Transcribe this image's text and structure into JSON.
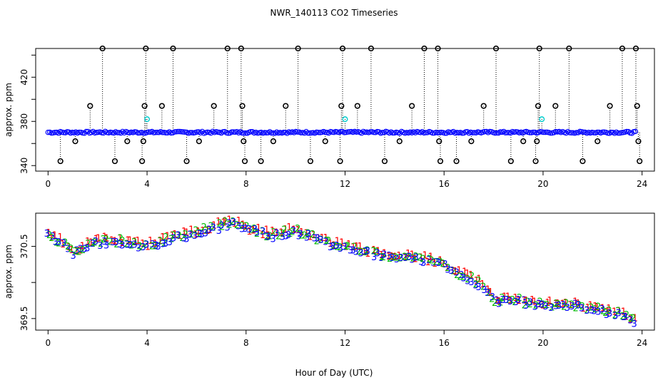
{
  "chart_data": [
    {
      "type": "scatter",
      "title": "NWR_140113  CO2 Timeseries",
      "ylabel": "approx. ppm",
      "xlim": [
        -0.5,
        24.5
      ],
      "ylim": [
        335,
        446
      ],
      "xticks": [
        "0",
        "4",
        "8",
        "12",
        "16",
        "20",
        "24"
      ],
      "yticks": [
        "340",
        "380",
        "420"
      ],
      "yminor_ticks": [
        360,
        400,
        440
      ],
      "baseline_ppm": 370.1,
      "series": [
        {
          "style": "blue open circles, near-continuous",
          "x_range": [
            0,
            23.8
          ],
          "y": 370.1
        },
        {
          "style": "black open circles (outliers)",
          "points": [
            [
              0.5,
              344
            ],
            [
              1.1,
              362
            ],
            [
              1.7,
              394
            ],
            [
              2.2,
              446
            ],
            [
              2.7,
              344
            ],
            [
              3.2,
              362
            ],
            [
              3.8,
              344
            ],
            [
              3.85,
              362
            ],
            [
              3.9,
              394
            ],
            [
              3.95,
              446
            ],
            [
              4.6,
              394
            ],
            [
              5.05,
              446
            ],
            [
              5.6,
              344
            ],
            [
              6.1,
              362
            ],
            [
              6.7,
              394
            ],
            [
              7.25,
              446
            ],
            [
              7.8,
              446
            ],
            [
              7.85,
              394
            ],
            [
              7.9,
              362
            ],
            [
              7.95,
              344
            ],
            [
              8.6,
              344
            ],
            [
              9.1,
              362
            ],
            [
              9.6,
              394
            ],
            [
              10.1,
              446
            ],
            [
              10.6,
              344
            ],
            [
              11.2,
              362
            ],
            [
              11.8,
              344
            ],
            [
              11.85,
              394
            ],
            [
              11.9,
              446
            ],
            [
              12.5,
              394
            ],
            [
              13.05,
              446
            ],
            [
              13.6,
              344
            ],
            [
              14.2,
              362
            ],
            [
              14.7,
              394
            ],
            [
              15.2,
              446
            ],
            [
              15.75,
              446
            ],
            [
              15.8,
              362
            ],
            [
              15.85,
              344
            ],
            [
              16.5,
              344
            ],
            [
              17.1,
              362
            ],
            [
              17.6,
              394
            ],
            [
              18.1,
              446
            ],
            [
              18.7,
              344
            ],
            [
              19.2,
              362
            ],
            [
              19.7,
              344
            ],
            [
              19.75,
              362
            ],
            [
              19.8,
              394
            ],
            [
              19.85,
              446
            ],
            [
              20.5,
              394
            ],
            [
              21.05,
              446
            ],
            [
              21.6,
              344
            ],
            [
              22.2,
              362
            ],
            [
              22.7,
              394
            ],
            [
              23.2,
              446
            ],
            [
              23.75,
              446
            ],
            [
              23.8,
              394
            ],
            [
              23.85,
              362
            ],
            [
              23.9,
              344
            ]
          ]
        },
        {
          "style": "cyan open circles",
          "points": [
            [
              4.0,
              382
            ],
            [
              12.0,
              382
            ],
            [
              19.95,
              382
            ]
          ]
        }
      ]
    },
    {
      "type": "scatter",
      "ylabel": "approx. ppm",
      "xlabel": "Hour of Day (UTC)",
      "xlim": [
        -0.5,
        24.5
      ],
      "ylim": [
        369.34,
        370.96
      ],
      "xticks": [
        "0",
        "4",
        "8",
        "12",
        "16",
        "20",
        "24"
      ],
      "yticks": [
        "369.5",
        "370.5"
      ],
      "yminor_ticks": [
        370.0
      ],
      "markers": [
        "1",
        "2",
        "3"
      ],
      "series_colors": {
        "1": "#ff0000",
        "2": "#00bb00",
        "3": "#0000ff"
      },
      "trend_anchors": {
        "x": [
          0.0,
          0.6,
          1.0,
          1.5,
          2.0,
          3.0,
          4.0,
          5.0,
          6.0,
          6.8,
          7.5,
          8.0,
          9.0,
          10.0,
          11.0,
          12.0,
          13.0,
          14.0,
          15.0,
          16.0,
          16.5,
          17.0,
          17.5,
          18.0,
          19.0,
          19.5,
          20.0,
          21.0,
          22.0,
          23.0,
          23.5,
          23.8
        ],
        "y": [
          370.67,
          370.55,
          370.44,
          370.5,
          370.58,
          370.58,
          370.52,
          370.62,
          370.7,
          370.78,
          370.84,
          370.75,
          370.66,
          370.73,
          370.6,
          370.48,
          370.42,
          370.36,
          370.34,
          370.26,
          370.12,
          370.08,
          369.98,
          369.76,
          369.75,
          369.72,
          369.7,
          369.7,
          369.65,
          369.58,
          369.52,
          369.43
        ]
      }
    }
  ]
}
